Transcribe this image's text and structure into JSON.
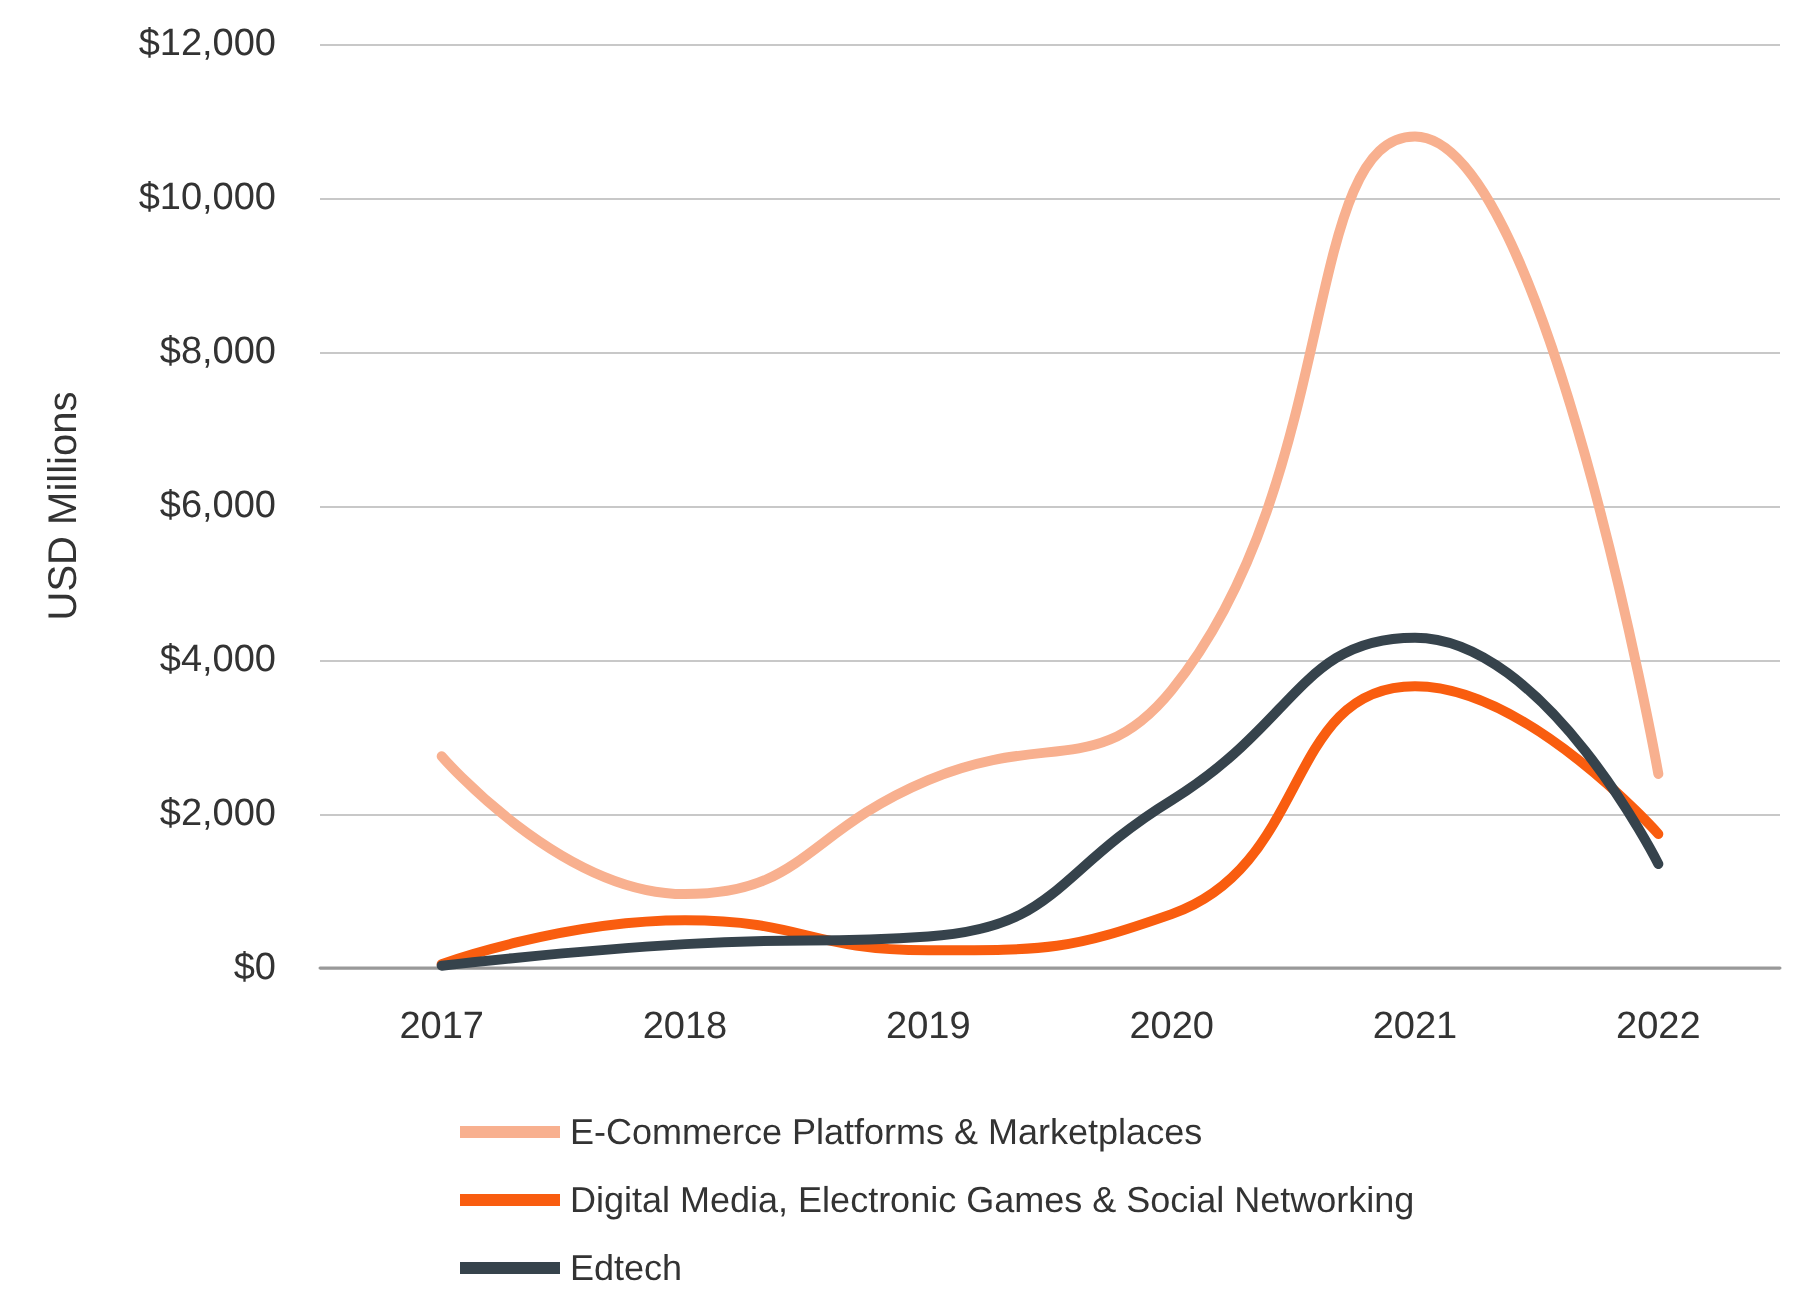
{
  "chart_data": {
    "type": "line",
    "ylabel": "USD Millions",
    "categories": [
      "2017",
      "2018",
      "2019",
      "2020",
      "2021",
      "2022"
    ],
    "series": [
      {
        "name": "E-Commerce Platforms & Marketplaces",
        "color": "#f8b08f",
        "values": [
          2750,
          960,
          2440,
          3610,
          10800,
          2520
        ]
      },
      {
        "name": "Digital Media, Electronic Games & Social Networking",
        "color": "#f95d0f",
        "values": [
          50,
          620,
          230,
          700,
          3660,
          1740
        ]
      },
      {
        "name": "Edtech",
        "color": "#36434c",
        "values": [
          30,
          310,
          410,
          2180,
          4290,
          1350
        ]
      }
    ],
    "ylim": [
      0,
      12000
    ],
    "yticks": [
      {
        "value": 0,
        "label": "$0"
      },
      {
        "value": 2000,
        "label": "$2,000"
      },
      {
        "value": 4000,
        "label": "$4,000"
      },
      {
        "value": 6000,
        "label": "$6,000"
      },
      {
        "value": 8000,
        "label": "$8,000"
      },
      {
        "value": 10000,
        "label": "$10,000"
      },
      {
        "value": 12000,
        "label": "$12,000"
      }
    ],
    "grid": "y",
    "legend": "bottom",
    "marker": "none"
  }
}
